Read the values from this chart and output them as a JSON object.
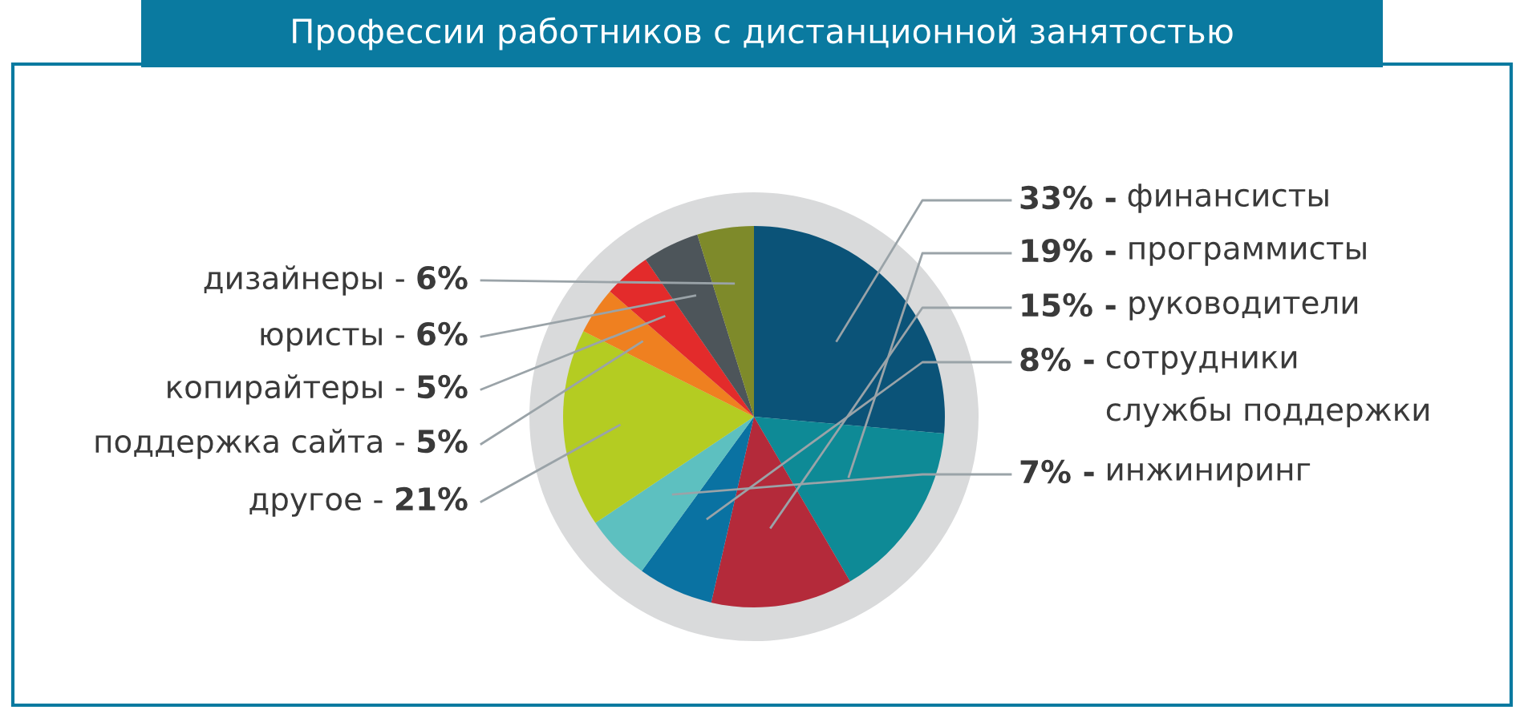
{
  "chart_data": {
    "type": "pie",
    "title": "Профессии работников с дистанционной занятостью",
    "categories": [
      "финансисты",
      "программисты",
      "руководители",
      "сотрудники\nслужбы поддержки",
      "инжиниринг",
      "другое -",
      "поддержка сайта -",
      "копирайтеры -",
      "юристы -",
      "дизайнеры -"
    ],
    "values": [
      33,
      19,
      15,
      8,
      7,
      21,
      5,
      5,
      6,
      6
    ],
    "value_labels": [
      "33% -",
      "19% -",
      "15% -",
      "8% -",
      "7% -",
      "21%",
      "5%",
      "5%",
      "6%",
      "6%"
    ],
    "colors": [
      "#0b5378",
      "#0e8a96",
      "#b42a3a",
      "#0a72a2",
      "#5dc0c0",
      "#b4cc22",
      "#ef8020",
      "#e32b2b",
      "#4d555a",
      "#7e8a2a"
    ]
  }
}
